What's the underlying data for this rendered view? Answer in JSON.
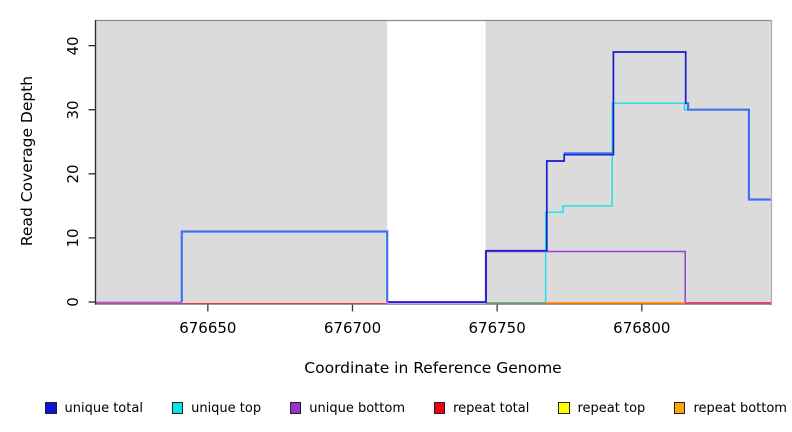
{
  "figure": {
    "xlabel": "Coordinate in Reference Genome",
    "ylabel": "Read Coverage Depth"
  },
  "chart_data": {
    "type": "line",
    "subtype": "step-coverage-plot",
    "title": "",
    "xlabel": "Coordinate in Reference Genome",
    "ylabel": "Read Coverage Depth",
    "xlim": [
      676611,
      676845
    ],
    "ylim": [
      0,
      44
    ],
    "xticks": [
      "676650",
      "676700",
      "676750",
      "676800"
    ],
    "xtick_values": [
      676650,
      676700,
      676750,
      676800
    ],
    "yticks": [
      "0",
      "10",
      "20",
      "30",
      "40"
    ],
    "ytick_values": [
      0,
      10,
      20,
      30,
      40
    ],
    "grid": false,
    "plot_background": "#DBDBDB",
    "masked_region": {
      "x0": 676712,
      "x1": 676746,
      "color": "#FFFFFF"
    },
    "legend_position": "bottom",
    "legend": [
      {
        "label": "unique total",
        "color": "#1212DD"
      },
      {
        "label": "unique top",
        "color": "#00E6E6"
      },
      {
        "label": "unique bottom",
        "color": "#9932CC"
      },
      {
        "label": "repeat total",
        "color": "#EE0011"
      },
      {
        "label": "repeat top",
        "color": "#FFFF00"
      },
      {
        "label": "repeat bottom",
        "color": "#FFA500"
      }
    ],
    "series": [
      {
        "name": "repeat-total-baseline-left",
        "color": "#F23744",
        "width": 1.3,
        "dy": 1.6,
        "points": [
          [
            676611,
            0
          ],
          [
            676712,
            0
          ]
        ]
      },
      {
        "name": "repeat-total-baseline-right",
        "color": "#F23744",
        "width": 1.3,
        "dy": 1.6,
        "points": [
          [
            676746,
            0
          ],
          [
            676845,
            0
          ]
        ]
      },
      {
        "name": "baseline-blend-blue-purple-left",
        "color": "#7B74EC",
        "width": 1.5,
        "dy": 0.4,
        "points": [
          [
            676611,
            0
          ],
          [
            676641,
            0
          ]
        ]
      },
      {
        "name": "unique-bottom",
        "color": "#9B3FD1",
        "width": 1.5,
        "dy": 0.8,
        "points": [
          [
            676712,
            0
          ],
          [
            676746,
            0
          ],
          [
            676746,
            8
          ],
          [
            676815,
            8
          ],
          [
            676815,
            0
          ],
          [
            676845,
            0
          ]
        ]
      },
      {
        "name": "baseline-blend-cyan-yellow-green",
        "color": "#3EC08A",
        "width": 1.4,
        "dy": 0.8,
        "points": [
          [
            676746,
            0
          ],
          [
            676767,
            0
          ]
        ]
      },
      {
        "name": "repeat-bottom",
        "color": "#FFA500",
        "width": 1.5,
        "dy": 0.8,
        "points": [
          [
            676767,
            0
          ],
          [
            676815,
            0
          ]
        ]
      },
      {
        "name": "baseline-blend-red-purple-magenta",
        "color": "#D8488A",
        "width": 1.4,
        "dy": 0.8,
        "points": [
          [
            676815,
            0
          ],
          [
            676845,
            0
          ]
        ]
      },
      {
        "name": "unique-top",
        "color": "#26DFE8",
        "width": 1.5,
        "dx": -0.7,
        "points": [
          [
            676767,
            0
          ],
          [
            676767,
            14
          ],
          [
            676773,
            14
          ],
          [
            676773,
            15
          ],
          [
            676790,
            15
          ],
          [
            676790,
            31
          ],
          [
            676815,
            31
          ],
          [
            676815,
            30
          ],
          [
            676837,
            30
          ]
        ]
      },
      {
        "name": "unique-total-dark",
        "color": "#1B1BD2",
        "width": 1.7,
        "dx": 0.5,
        "points": [
          [
            676712,
            0
          ],
          [
            676746,
            0
          ],
          [
            676746,
            8
          ],
          [
            676767,
            8
          ],
          [
            676767,
            22
          ],
          [
            676773,
            22
          ],
          [
            676773,
            23
          ],
          [
            676790,
            23
          ],
          [
            676790,
            39
          ],
          [
            676815,
            39
          ],
          [
            676815,
            31
          ],
          [
            676816,
            31
          ]
        ]
      },
      {
        "name": "unique-total-bright-left-plateau",
        "color": "#3E74F2",
        "width": 2.2,
        "points": [
          [
            676641,
            0
          ],
          [
            676641,
            11
          ],
          [
            676712,
            11
          ],
          [
            676712,
            0
          ]
        ]
      },
      {
        "name": "unique-total-bright-mid-segment",
        "color": "#3E74F2",
        "width": 1.8,
        "dy": -1.4,
        "points": [
          [
            676773,
            23
          ],
          [
            676790,
            23
          ]
        ]
      },
      {
        "name": "unique-total-bright-right",
        "color": "#3E74F2",
        "width": 2.2,
        "points": [
          [
            676815.6,
            31
          ],
          [
            676816,
            31
          ],
          [
            676816,
            30
          ],
          [
            676837,
            30
          ],
          [
            676837,
            16
          ],
          [
            676845,
            16
          ]
        ]
      }
    ]
  }
}
